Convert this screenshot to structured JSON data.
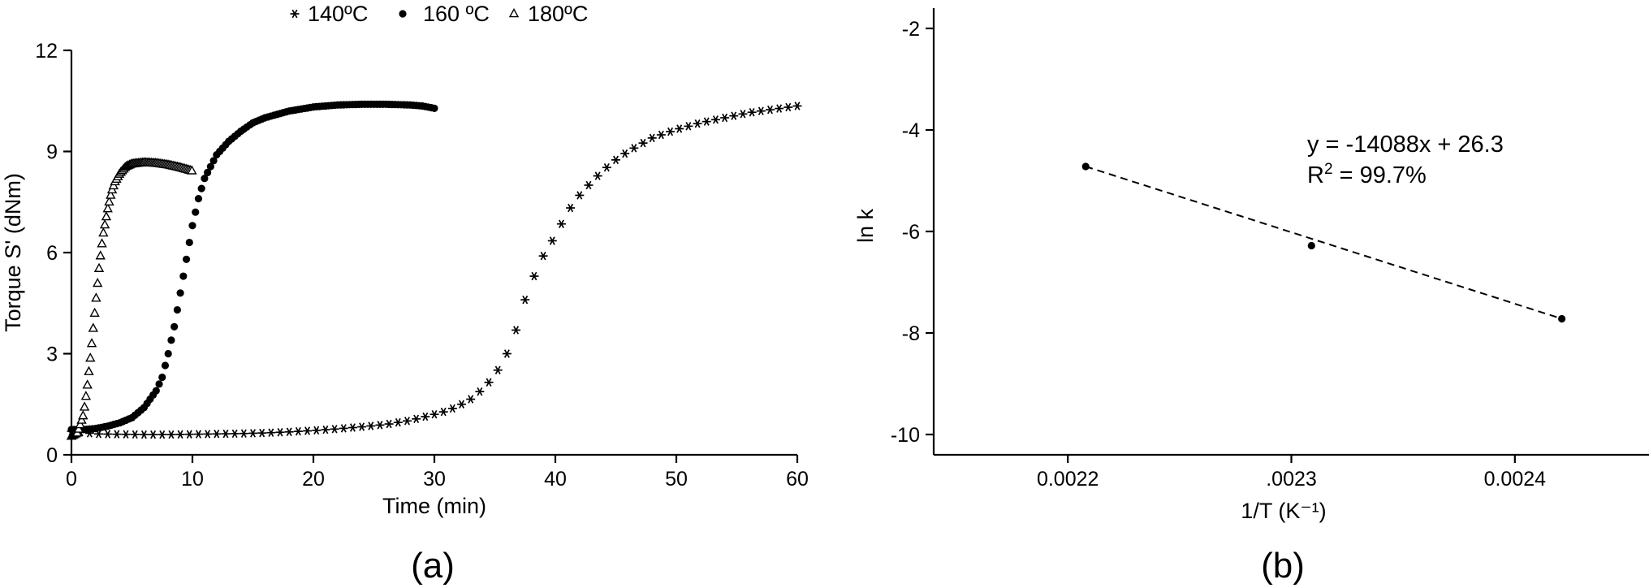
{
  "chart_data": [
    {
      "panel": "(a)",
      "type": "scatter",
      "xlabel": "Time (min)",
      "ylabel": "Torque S' (dNm)",
      "xlim": [
        0,
        60
      ],
      "ylim": [
        0,
        12
      ],
      "xticks": [
        0,
        10,
        20,
        30,
        40,
        50,
        60
      ],
      "yticks": [
        0,
        3,
        6,
        9,
        12
      ],
      "grid": false,
      "legend": {
        "placement": "top-center",
        "entries": [
          "140ºC",
          "160 ºC",
          "180ºC"
        ]
      },
      "series": [
        {
          "name": "140ºC",
          "marker": "asterisk",
          "points": [
            [
              0,
              0.7
            ],
            [
              2,
              0.62
            ],
            [
              4,
              0.61
            ],
            [
              6,
              0.6
            ],
            [
              8,
              0.6
            ],
            [
              10,
              0.61
            ],
            [
              12,
              0.62
            ],
            [
              14,
              0.63
            ],
            [
              16,
              0.65
            ],
            [
              18,
              0.68
            ],
            [
              20,
              0.72
            ],
            [
              22,
              0.77
            ],
            [
              24,
              0.83
            ],
            [
              26,
              0.9
            ],
            [
              28,
              1.02
            ],
            [
              30,
              1.2
            ],
            [
              31,
              1.3
            ],
            [
              32,
              1.45
            ],
            [
              33,
              1.65
            ],
            [
              34,
              1.95
            ],
            [
              35,
              2.35
            ],
            [
              36,
              3.0
            ],
            [
              36.5,
              3.4
            ],
            [
              37,
              4.0
            ],
            [
              37.5,
              4.6
            ],
            [
              38,
              5.1
            ],
            [
              38.5,
              5.5
            ],
            [
              39,
              5.9
            ],
            [
              40,
              6.5
            ],
            [
              41,
              7.2
            ],
            [
              42,
              7.7
            ],
            [
              43,
              8.1
            ],
            [
              44,
              8.45
            ],
            [
              45,
              8.75
            ],
            [
              46,
              9.0
            ],
            [
              47,
              9.2
            ],
            [
              48,
              9.4
            ],
            [
              50,
              9.65
            ],
            [
              52,
              9.85
            ],
            [
              54,
              10.0
            ],
            [
              56,
              10.15
            ],
            [
              58,
              10.25
            ],
            [
              60,
              10.35
            ]
          ]
        },
        {
          "name": "160 ºC",
          "marker": "filled-circle",
          "points": [
            [
              0,
              0.75
            ],
            [
              1,
              0.75
            ],
            [
              2,
              0.78
            ],
            [
              3,
              0.85
            ],
            [
              4,
              0.95
            ],
            [
              5,
              1.1
            ],
            [
              6,
              1.4
            ],
            [
              7,
              1.9
            ],
            [
              7.5,
              2.3
            ],
            [
              8,
              3.0
            ],
            [
              8.5,
              3.8
            ],
            [
              9,
              4.8
            ],
            [
              9.5,
              5.8
            ],
            [
              10,
              6.8
            ],
            [
              10.5,
              7.6
            ],
            [
              11,
              8.2
            ],
            [
              12,
              8.9
            ],
            [
              13,
              9.3
            ],
            [
              14,
              9.6
            ],
            [
              15,
              9.85
            ],
            [
              16,
              10.0
            ],
            [
              18,
              10.2
            ],
            [
              20,
              10.32
            ],
            [
              22,
              10.38
            ],
            [
              24,
              10.4
            ],
            [
              26,
              10.4
            ],
            [
              28,
              10.38
            ],
            [
              29,
              10.35
            ],
            [
              30,
              10.28
            ]
          ]
        },
        {
          "name": "180ºC",
          "marker": "open-triangle",
          "points": [
            [
              0,
              0.55
            ],
            [
              0.5,
              0.65
            ],
            [
              1,
              1.2
            ],
            [
              1.3,
              2.0
            ],
            [
              1.6,
              3.0
            ],
            [
              2,
              4.5
            ],
            [
              2.3,
              5.6
            ],
            [
              2.6,
              6.5
            ],
            [
              3,
              7.3
            ],
            [
              3.3,
              7.8
            ],
            [
              3.6,
              8.1
            ],
            [
              4,
              8.35
            ],
            [
              4.5,
              8.55
            ],
            [
              5,
              8.63
            ],
            [
              6,
              8.67
            ],
            [
              7,
              8.65
            ],
            [
              8,
              8.6
            ],
            [
              9,
              8.52
            ],
            [
              10,
              8.42
            ]
          ]
        }
      ]
    },
    {
      "panel": "(b)",
      "type": "scatter",
      "xlabel": "1/T (K⁻¹)",
      "ylabel": "ln k",
      "xlim": [
        0.00214,
        0.00246
      ],
      "ylim": [
        -10.4,
        -1.6
      ],
      "xticks": [
        0.0022,
        0.0023,
        0.0024
      ],
      "xtick_labels": [
        "0.0022",
        ".0023",
        "0.0024"
      ],
      "yticks": [
        -10,
        -8,
        -6,
        -4,
        -2
      ],
      "grid": false,
      "points": [
        [
          0.002208,
          -4.72
        ],
        [
          0.002309,
          -6.28
        ],
        [
          0.002421,
          -7.72
        ]
      ],
      "fit": {
        "slope": -14088,
        "intercept": 26.3,
        "x_from": 0.002208,
        "x_to": 0.002421
      },
      "annotation": {
        "equation": "y = -14088x + 26.3",
        "r2_prefix": "R",
        "r2_sup": "2",
        "r2_value": " = 99.7%"
      }
    }
  ]
}
